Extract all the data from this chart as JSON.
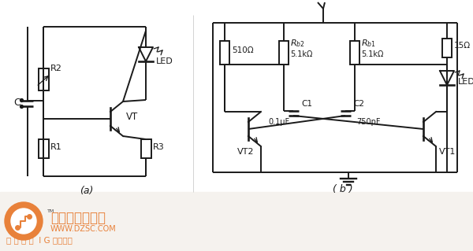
{
  "bg_color": "#ffffff",
  "bottom_bg": "#f5f2ee",
  "line_color": "#1a1a1a",
  "orange_color": "#e8813a",
  "label_a": "(a)",
  "label_b": "( b )",
  "fig_width": 6.0,
  "fig_height": 3.19,
  "dpi": 100,
  "watermark_main": "维库电子市场网",
  "watermark_url": "WWW.DZSC.COM",
  "watermark_sub": "全 球 最 大  I G 采购网站"
}
